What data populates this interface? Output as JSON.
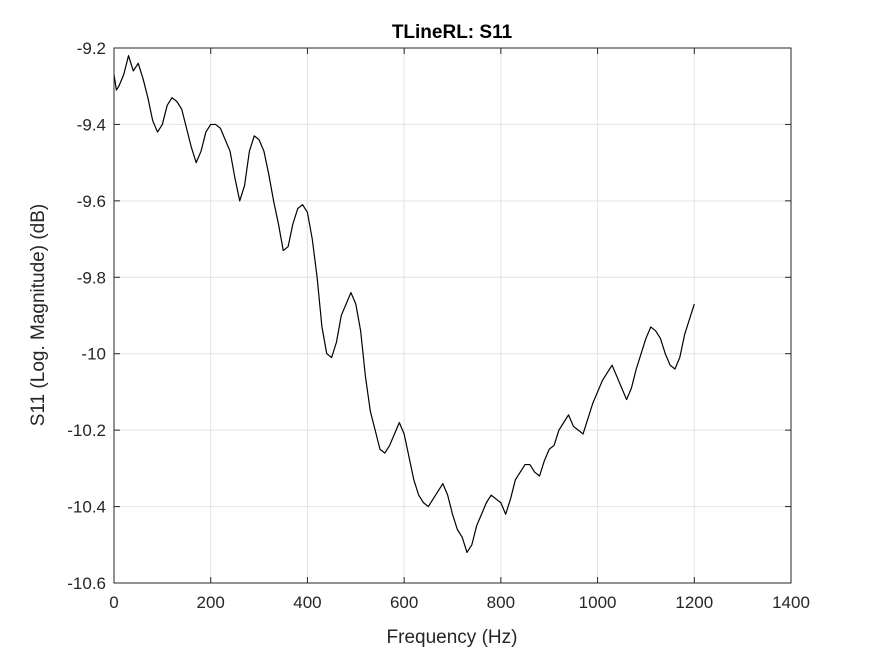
{
  "chart_data": {
    "type": "line",
    "title": "TLineRL: S11",
    "xlabel": "Frequency (Hz)",
    "ylabel": "S11 (Log. Magnitude) (dB)",
    "xlim": [
      0,
      1400
    ],
    "ylim": [
      -10.6,
      -9.2
    ],
    "xticks": [
      0,
      200,
      400,
      600,
      800,
      1000,
      1200,
      1400
    ],
    "xtick_labels": [
      "0",
      "200",
      "400",
      "600",
      "800",
      "1000",
      "1200",
      "1400"
    ],
    "yticks": [
      -9.2,
      -9.4,
      -9.6,
      -9.8,
      -10,
      -10.2,
      -10.4,
      -10.6
    ],
    "ytick_labels": [
      "-9.2",
      "-9.4",
      "-9.6",
      "-9.8",
      "-10",
      "-10.2",
      "-10.4",
      "-10.6"
    ],
    "grid": true,
    "line_color": "#000000",
    "series": [
      {
        "x": [
          0,
          5,
          10,
          20,
          30,
          40,
          50,
          60,
          70,
          80,
          90,
          100,
          110,
          120,
          130,
          140,
          150,
          160,
          170,
          180,
          190,
          200,
          210,
          220,
          230,
          240,
          250,
          260,
          270,
          280,
          290,
          300,
          310,
          320,
          330,
          340,
          350,
          360,
          370,
          380,
          390,
          400,
          410,
          420,
          430,
          440,
          450,
          460,
          470,
          480,
          490,
          500,
          510,
          520,
          530,
          540,
          550,
          560,
          570,
          580,
          590,
          600,
          610,
          620,
          630,
          640,
          650,
          660,
          670,
          680,
          690,
          700,
          710,
          720,
          730,
          740,
          750,
          760,
          770,
          780,
          790,
          800,
          810,
          820,
          830,
          840,
          850,
          860,
          870,
          880,
          890,
          900,
          910,
          920,
          930,
          940,
          950,
          960,
          970,
          980,
          990,
          1000,
          1010,
          1020,
          1030,
          1040,
          1050,
          1060,
          1070,
          1080,
          1090,
          1100,
          1110,
          1120,
          1130,
          1140,
          1150,
          1160,
          1170,
          1180,
          1190,
          1200
        ],
        "y": [
          -9.27,
          -9.31,
          -9.3,
          -9.27,
          -9.22,
          -9.26,
          -9.24,
          -9.28,
          -9.33,
          -9.39,
          -9.42,
          -9.4,
          -9.35,
          -9.33,
          -9.34,
          -9.36,
          -9.41,
          -9.46,
          -9.5,
          -9.47,
          -9.42,
          -9.4,
          -9.4,
          -9.41,
          -9.44,
          -9.47,
          -9.54,
          -9.6,
          -9.56,
          -9.47,
          -9.43,
          -9.44,
          -9.47,
          -9.53,
          -9.6,
          -9.66,
          -9.73,
          -9.72,
          -9.66,
          -9.62,
          -9.61,
          -9.63,
          -9.7,
          -9.8,
          -9.93,
          -10.0,
          -10.01,
          -9.97,
          -9.9,
          -9.87,
          -9.84,
          -9.87,
          -9.94,
          -10.06,
          -10.15,
          -10.2,
          -10.25,
          -10.26,
          -10.24,
          -10.21,
          -10.18,
          -10.21,
          -10.27,
          -10.33,
          -10.37,
          -10.39,
          -10.4,
          -10.38,
          -10.36,
          -10.34,
          -10.37,
          -10.42,
          -10.46,
          -10.48,
          -10.52,
          -10.5,
          -10.45,
          -10.42,
          -10.39,
          -10.37,
          -10.38,
          -10.39,
          -10.42,
          -10.38,
          -10.33,
          -10.31,
          -10.29,
          -10.29,
          -10.31,
          -10.32,
          -10.28,
          -10.25,
          -10.24,
          -10.2,
          -10.18,
          -10.16,
          -10.19,
          -10.2,
          -10.21,
          -10.17,
          -10.13,
          -10.1,
          -10.07,
          -10.05,
          -10.03,
          -10.06,
          -10.09,
          -10.12,
          -10.09,
          -10.04,
          -10.0,
          -9.96,
          -9.93,
          -9.94,
          -9.96,
          -10.0,
          -10.03,
          -10.04,
          -10.01,
          -9.95,
          -9.91,
          -9.87
        ]
      }
    ]
  }
}
